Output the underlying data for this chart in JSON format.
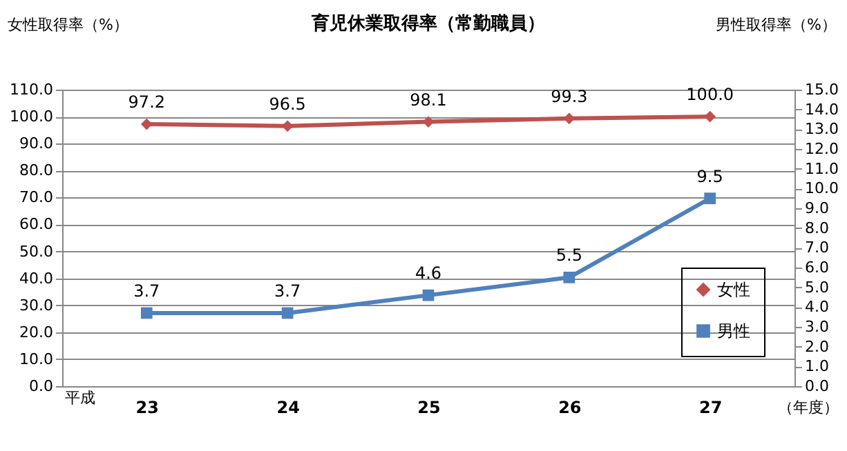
{
  "chart_data": {
    "type": "line",
    "title": "育児休業取得率（常勤職員）",
    "ylabel": "女性取得率（%）",
    "y2label": "男性取得率（%）",
    "categories": [
      "23",
      "24",
      "25",
      "26",
      "27"
    ],
    "series": [
      {
        "name": "女性",
        "color": "#c0504d",
        "marker": "diamond",
        "values": [
          97.2,
          96.5,
          98.1,
          99.3,
          100.0
        ],
        "value_labels": [
          "97.2",
          "96.5",
          "98.1",
          "99.3",
          "100.0"
        ]
      },
      {
        "name": "男性",
        "color": "#4f81bd",
        "marker": "square",
        "axis": "y2",
        "values": [
          3.7,
          3.7,
          4.6,
          5.5,
          9.5
        ],
        "value_labels": [
          "3.7",
          "3.7",
          "4.6",
          "5.5",
          "9.5"
        ]
      }
    ],
    "ylim": [
      0,
      110
    ],
    "yticks": [
      {
        "value": 0,
        "label": "0.0"
      },
      {
        "value": 10,
        "label": "10.0"
      },
      {
        "value": 20,
        "label": "20.0"
      },
      {
        "value": 30,
        "label": "30.0"
      },
      {
        "value": 40,
        "label": "40.0"
      },
      {
        "value": 50,
        "label": "50.0"
      },
      {
        "value": 60,
        "label": "60.0"
      },
      {
        "value": 70,
        "label": "70.0"
      },
      {
        "value": 80,
        "label": "80.0"
      },
      {
        "value": 90,
        "label": "90.0"
      },
      {
        "value": 100,
        "label": "100.0"
      },
      {
        "value": 110,
        "label": "110.0"
      }
    ],
    "y2lim": [
      0,
      15
    ],
    "y2ticks": [
      {
        "value": 0,
        "label": "0.0"
      },
      {
        "value": 1,
        "label": "1.0"
      },
      {
        "value": 2,
        "label": "2.0"
      },
      {
        "value": 3,
        "label": "3.0"
      },
      {
        "value": 4,
        "label": "4.0"
      },
      {
        "value": 5,
        "label": "5.0"
      },
      {
        "value": 6,
        "label": "6.0"
      },
      {
        "value": 7,
        "label": "7.0"
      },
      {
        "value": 8,
        "label": "8.0"
      },
      {
        "value": 9,
        "label": "9.0"
      },
      {
        "value": 10,
        "label": "10.0"
      },
      {
        "value": 11,
        "label": "11.0"
      },
      {
        "value": 12,
        "label": "12.0"
      },
      {
        "value": 13,
        "label": "13.0"
      },
      {
        "value": 14,
        "label": "14.0"
      },
      {
        "value": 15,
        "label": "15.0"
      }
    ],
    "grid": "y",
    "legend": "bottom right",
    "line_style": "solid",
    "annotations": [
      "平成",
      "（年度）"
    ]
  }
}
